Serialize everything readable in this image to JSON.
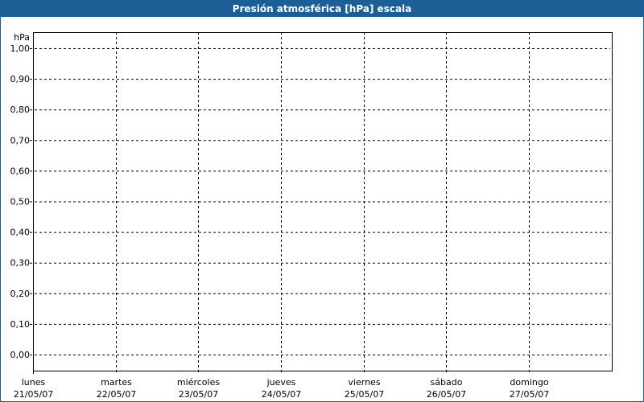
{
  "window": {
    "title": "Presión atmosférica [hPa] escala",
    "accent_color": "#1c5f96"
  },
  "chart_data": {
    "type": "line",
    "title": "Presión atmosférica [hPa] escala",
    "ylabel": "hPa",
    "xlabel": "",
    "ylim": [
      0,
      1
    ],
    "yticks": [
      "0,00",
      "0,10",
      "0,20",
      "0,30",
      "0,40",
      "0,50",
      "0,60",
      "0,70",
      "0,80",
      "0,90",
      "1,00"
    ],
    "categories": [
      {
        "day": "lunes",
        "date": "21/05/07"
      },
      {
        "day": "martes",
        "date": "22/05/07"
      },
      {
        "day": "miércoles",
        "date": "23/05/07"
      },
      {
        "day": "jueves",
        "date": "24/05/07"
      },
      {
        "day": "viernes",
        "date": "25/05/07"
      },
      {
        "day": "sábado",
        "date": "26/05/07"
      },
      {
        "day": "domingo",
        "date": "27/05/07"
      }
    ],
    "series": [],
    "grid": true,
    "grid_style": "dashed"
  }
}
